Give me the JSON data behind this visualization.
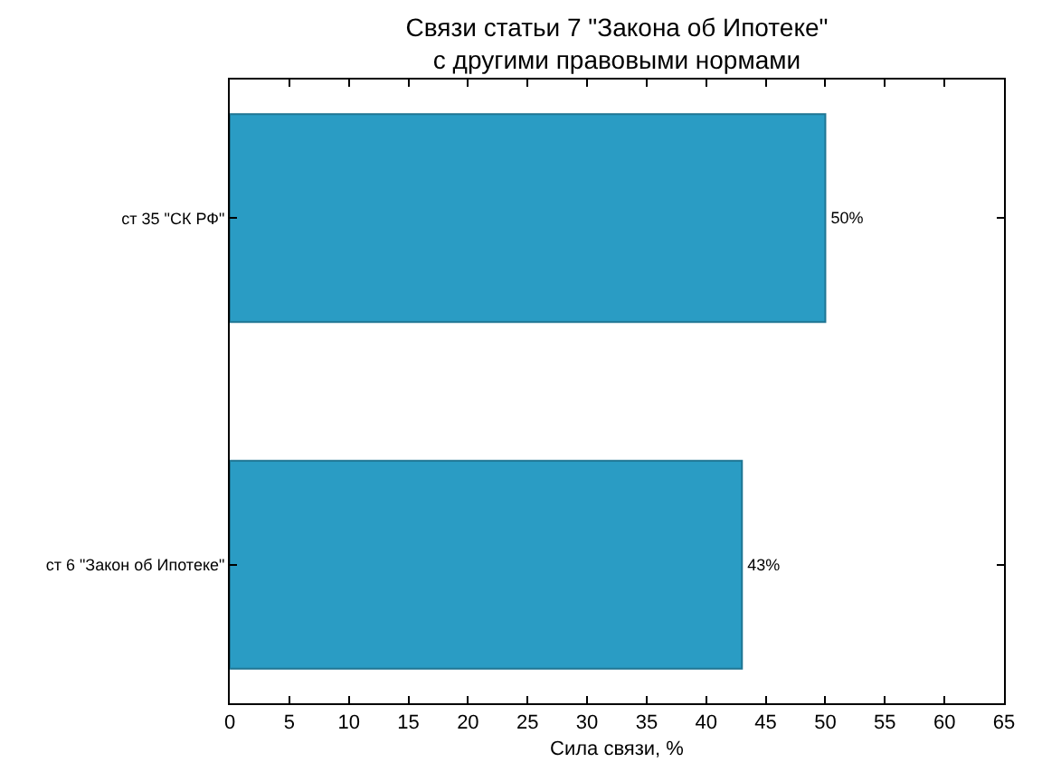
{
  "chart_data": {
    "type": "bar",
    "orientation": "horizontal",
    "title": "Связи статьи 7 \"Закона об Ипотеке\"\nс другими правовыми нормами",
    "xlabel": "Сила связи, %",
    "categories": [
      "ст 35 \"СК РФ\"",
      "ст 6 \"Закон об Ипотеке\""
    ],
    "values": [
      50,
      43
    ],
    "value_labels": [
      "50%",
      "43%"
    ],
    "color": "#2a9cc4",
    "xlim": [
      0,
      65
    ],
    "xticks": [
      0,
      5,
      10,
      15,
      20,
      25,
      30,
      35,
      40,
      45,
      50,
      55,
      60,
      65
    ]
  }
}
